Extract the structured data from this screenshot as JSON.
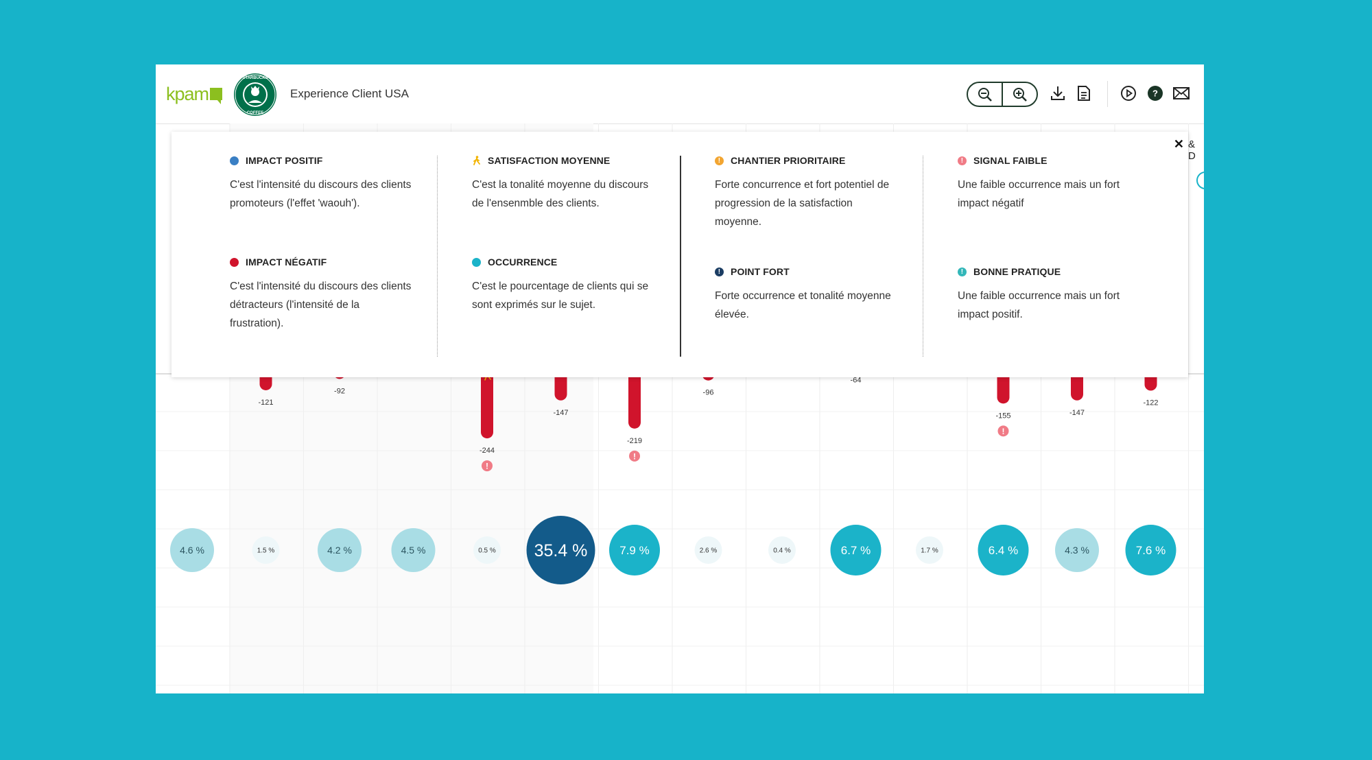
{
  "header": {
    "kpam_logo": "kpam",
    "brand_logo_text": "STARBUCKS COFFEE",
    "title": "Experience Client USA",
    "icons": [
      "zoom-out-icon",
      "zoom-in-icon",
      "download-icon",
      "document-icon",
      "play-icon",
      "help-icon",
      "mail-icon"
    ]
  },
  "legend": {
    "close_label": "✕",
    "partial_edge_text": "& D",
    "items": [
      {
        "title": "IMPACT POSITIF",
        "text": "C'est l'intensité du discours des clients promoteurs (l'effet 'waouh').",
        "icon": "dot",
        "color": "#3a7fc4"
      },
      {
        "title": "IMPACT NÉGATIF",
        "text": "C'est l'intensité du discours des clients détracteurs (l'intensité de la frustration).",
        "icon": "dot",
        "color": "#d0142c"
      },
      {
        "title": "SATISFACTION MOYENNE",
        "text": "C'est la tonalité moyenne du discours de l'ensenmble des clients.",
        "icon": "walker",
        "color": "#f2b300"
      },
      {
        "title": "OCCURRENCE",
        "text": "C'est le pourcentage de clients qui se sont exprimés sur le sujet.",
        "icon": "dot",
        "color": "#1bb3c9"
      },
      {
        "title": "CHANTIER PRIORITAIRE",
        "text": "Forte concurrence et fort potentiel de progression de la satisfaction moyenne.",
        "icon": "exclamation",
        "color": "#f2a531"
      },
      {
        "title": "POINT FORT",
        "text": "Forte occurrence et tonalité moyenne élevée.",
        "icon": "exclamation",
        "color": "#1b3d63"
      },
      {
        "title": "SIGNAL FAIBLE",
        "text": "Une faible occurrence mais un fort impact négatif",
        "icon": "exclamation",
        "color": "#f07b86"
      },
      {
        "title": "BONNE PRATIQUE",
        "text": "Une faible occurrence mais un fort impact positif.",
        "icon": "exclamation",
        "color": "#33b7b9"
      }
    ]
  },
  "chart_data": {
    "type": "bar",
    "series": [
      {
        "values": [
          -121,
          -92,
          -244,
          -147,
          -219,
          -96,
          -64,
          -155,
          -147,
          -122
        ]
      },
      {
        "values": [
          4.6,
          1.5,
          4.2,
          4.5,
          0.5,
          35.4,
          7.9,
          2.6,
          0.4,
          6.7,
          1.7,
          6.4,
          4.3,
          7.6
        ]
      }
    ],
    "negative_labels": [
      "-121",
      "-92",
      "-244",
      "-147",
      "-219",
      "-96",
      "-64",
      "-155",
      "-147",
      "-122"
    ],
    "satisfaction_markers_on": [
      "-92",
      "-244"
    ],
    "signal_faible_markers_on": [
      "-244",
      "-219",
      "-155"
    ],
    "occurrence_labels": [
      "4.6 %",
      "1.5 %",
      "4.2 %",
      "4.5 %",
      "0.5 %",
      "35.4 %",
      "7.9 %",
      "2.6 %",
      "0.4 %",
      "6.7 %",
      "1.7 %",
      "6.4 %",
      "4.3 %",
      "7.6 %"
    ],
    "colors": {
      "negative": "#d0142c",
      "occurrence_light": "#a9dde5",
      "occurrence_medium": "#1bb3c9",
      "occurrence_dark": "#135b8a",
      "occurrence_pale": "#eef7f9",
      "marker_red": "#f07b86",
      "marker_yellow": "#f2b300"
    }
  }
}
